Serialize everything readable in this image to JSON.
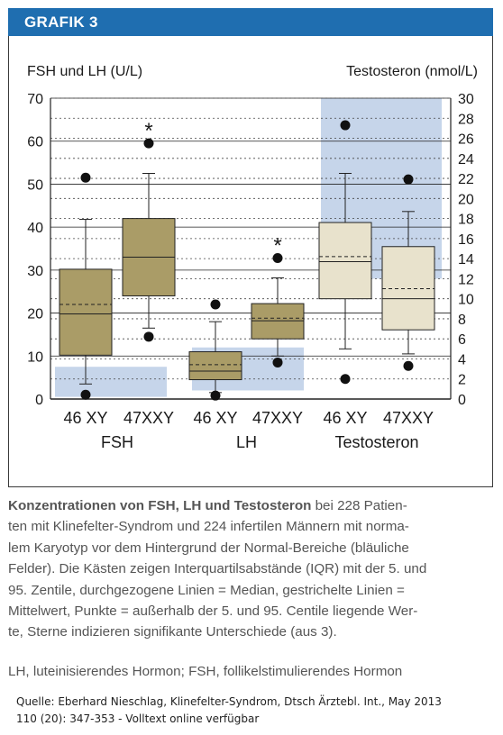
{
  "header": {
    "title": "GRAFIK 3"
  },
  "chart_data": {
    "type": "box",
    "ylabel_left": "FSH und LH (U/L)",
    "ylabel_right": "Testosteron (nmol/L)",
    "y_left": {
      "min": 0,
      "max": 70,
      "ticks": [
        0,
        10,
        20,
        30,
        40,
        50,
        60,
        70
      ]
    },
    "y_right": {
      "min": 0,
      "max": 30,
      "ticks": [
        0,
        2,
        4,
        6,
        8,
        10,
        12,
        14,
        16,
        18,
        20,
        22,
        24,
        26,
        28,
        30
      ]
    },
    "groups": [
      {
        "label": "FSH",
        "axis": "left",
        "normal_range": [
          0.5,
          7.5
        ]
      },
      {
        "label": "LH",
        "axis": "left",
        "normal_range": [
          2,
          12
        ]
      },
      {
        "label": "Testosteron",
        "axis": "right",
        "normal_range": [
          12,
          30
        ]
      }
    ],
    "boxes": [
      {
        "group": "FSH",
        "label": "46 XY",
        "axis": "left",
        "color": "#aa9c67",
        "p5": 3.5,
        "q1": 10.2,
        "median": 19.8,
        "mean": 22,
        "q3": 30.2,
        "p95": 41.8,
        "outliers": [
          1,
          51.5
        ],
        "star": false
      },
      {
        "group": "FSH",
        "label": "47XXY",
        "axis": "left",
        "color": "#aa9c67",
        "p5": 16.5,
        "q1": 24,
        "median": 33,
        "mean": 33,
        "q3": 42,
        "p95": 52.5,
        "outliers": [
          14.5,
          59.5
        ],
        "star": true
      },
      {
        "group": "LH",
        "label": "46 XY",
        "axis": "left",
        "color": "#aa9c67",
        "p5": 1.5,
        "q1": 4.5,
        "median": 6.5,
        "mean": 8,
        "q3": 11,
        "p95": 18,
        "outliers": [
          0.8,
          22
        ],
        "star": false
      },
      {
        "group": "LH",
        "label": "47XXY",
        "axis": "left",
        "color": "#aa9c67",
        "p5": 10,
        "q1": 14,
        "median": 18.2,
        "mean": 18.8,
        "q3": 22.2,
        "p95": 28.2,
        "outliers": [
          8.5,
          32.8
        ],
        "star": true
      },
      {
        "group": "Testosteron",
        "label": "46 XY",
        "axis": "right",
        "color": "#e8e2cc",
        "p5": 5,
        "q1": 10,
        "median": 13.7,
        "mean": 14.2,
        "q3": 17.6,
        "p95": 22.5,
        "outliers": [
          2,
          27.3
        ],
        "star": false
      },
      {
        "group": "Testosteron",
        "label": "47XXY",
        "axis": "right",
        "color": "#e8e2cc",
        "p5": 4.5,
        "q1": 6.9,
        "median": 10,
        "mean": 11,
        "q3": 15.2,
        "p95": 18.7,
        "outliers": [
          3.3,
          21.9
        ],
        "star": false
      }
    ],
    "star_symbol": "*",
    "legend": "none"
  },
  "caption": {
    "lead": "Konzentrationen von FSH, LH und Testosteron",
    "lines": [
      " bei 228 Patien-",
      "ten mit Klinefelter-Syndrom und 224 infertilen Männern mit norma-",
      "lem Karyotyp vor dem Hintergrund der Normal-Bereiche (bläuliche",
      "Felder). Die Kästen zeigen Interquartilsabstände (IQR) mit der 5. und",
      "95. Zentile, durchgezogene Linien = Median, gestrichelte Linien =",
      "Mittelwert, Punkte = außerhalb der 5. und 95. Centile liegende Wer-",
      "te, Sterne indizieren signifikante Unterschiede (aus 3)."
    ],
    "abbreviations": "LH, luteinisierendes Hormon; FSH, follikelstimulierendes Hormon"
  },
  "source": {
    "line1": "Quelle: Eberhard Nieschlag, Klinefelter-Syndrom, Dtsch Ärztebl. Int., May 2013",
    "line2": "110 (20): 347-353 - Volltext online verfügbar"
  },
  "colors": {
    "header_bg": "#1f6eb0",
    "normal_range": "#c6d5ea",
    "box_fsh_lh": "#aa9c67",
    "box_testosteron": "#e8e2cc"
  }
}
